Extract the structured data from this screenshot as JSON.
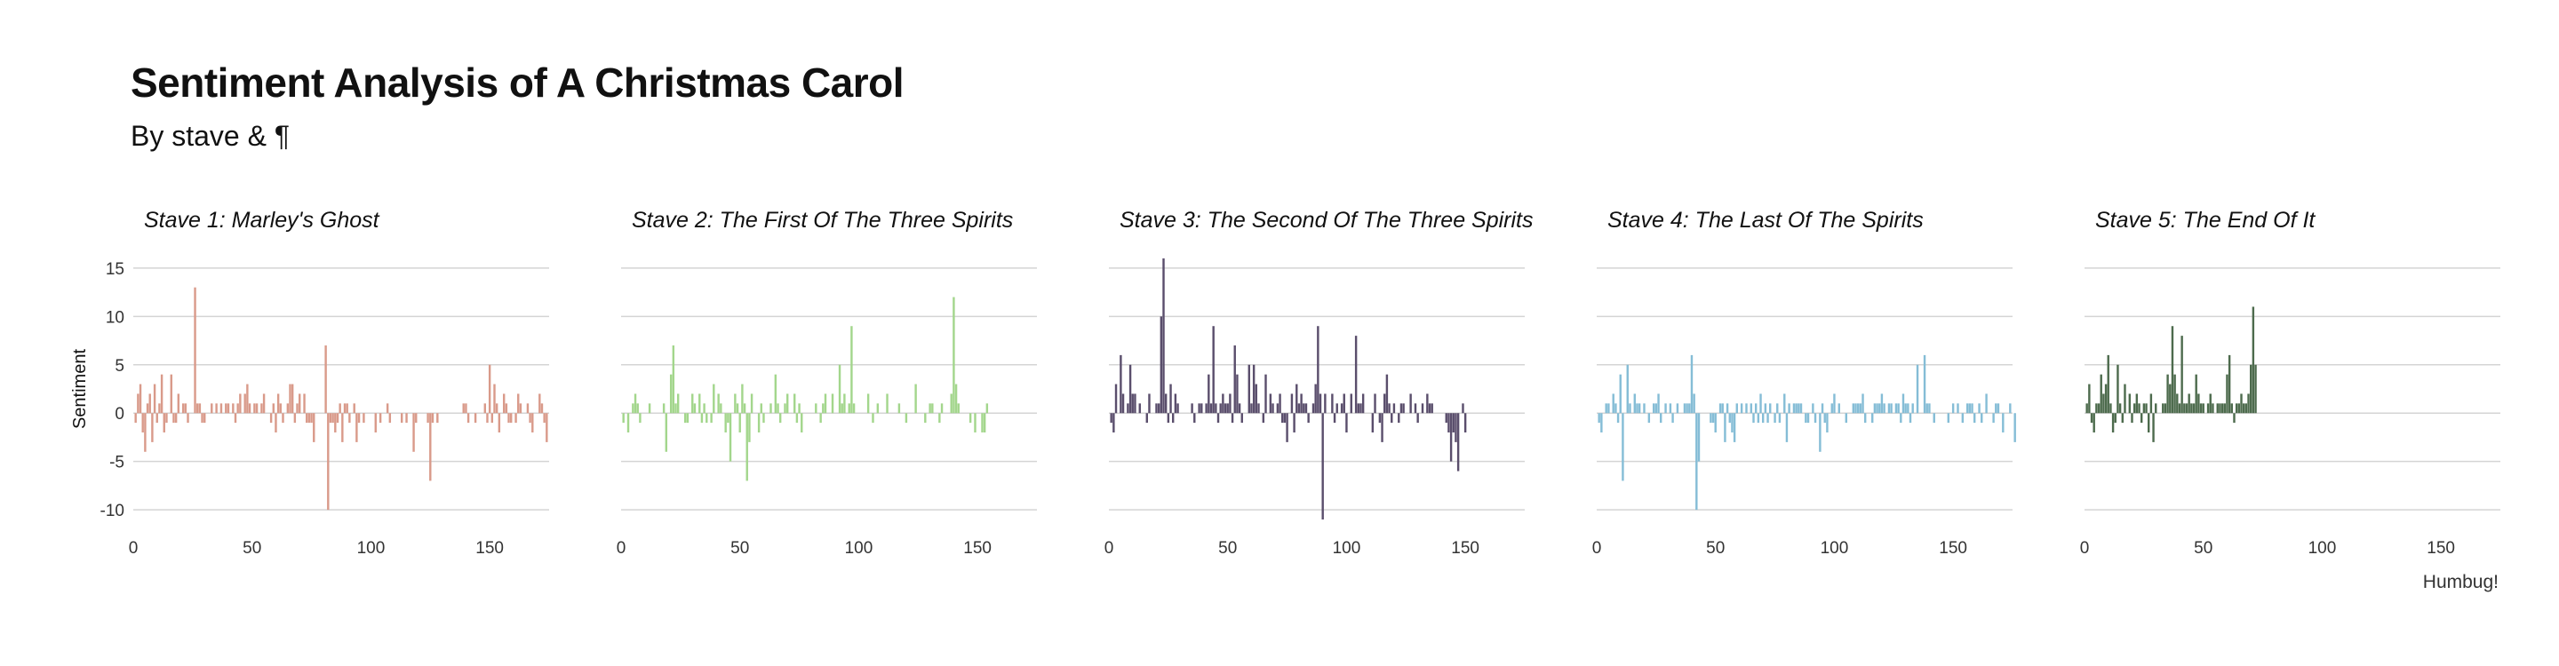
{
  "header": {
    "title": "Sentiment Analysis of A Christmas Carol",
    "subtitle": "By stave & ¶"
  },
  "caption": "Humbug!",
  "chart_data": {
    "type": "bar",
    "title": "Sentiment Analysis of A Christmas Carol",
    "subtitle": "By stave & ¶",
    "xlabel": "",
    "ylabel": "Sentiment",
    "xlim": [
      0,
      175
    ],
    "ylim": [
      -11,
      16
    ],
    "x_ticks": [
      0,
      50,
      100,
      150
    ],
    "y_ticks": [
      -10,
      -5,
      0,
      5,
      10,
      15
    ],
    "grid": "horizontal",
    "facets": [
      {
        "label": "Stave 1:  Marley's Ghost",
        "color": "#d99a8a",
        "values": [
          -1,
          2,
          3,
          -2,
          -4,
          1,
          2,
          -3,
          3,
          -1,
          1,
          4,
          -2,
          -1,
          0,
          4,
          -1,
          -1,
          2,
          0,
          1,
          1,
          -1,
          0,
          0,
          13,
          1,
          1,
          -1,
          -1,
          0,
          0,
          1,
          0,
          1,
          0,
          1,
          0,
          1,
          1,
          0,
          1,
          -1,
          1,
          2,
          0,
          2,
          3,
          1,
          0,
          1,
          1,
          0,
          1,
          2,
          0,
          0,
          -1,
          1,
          -2,
          2,
          1,
          -1,
          0,
          1,
          3,
          3,
          -1,
          1,
          2,
          0,
          2,
          -1,
          -1,
          -1,
          -3,
          0,
          0,
          0,
          0,
          7,
          -10,
          -1,
          -1,
          -2,
          -1,
          1,
          -3,
          1,
          1,
          -1,
          0,
          1,
          -3,
          -1,
          0,
          -1,
          0,
          0,
          0,
          0,
          -2,
          0,
          -1,
          0,
          0,
          1,
          -1,
          0,
          0,
          0,
          0,
          -1,
          0,
          -1,
          0,
          0,
          -4,
          -1,
          0,
          0,
          0,
          0,
          -1,
          -7,
          -1,
          0,
          -1,
          0,
          0,
          0,
          0,
          0,
          0,
          0,
          0,
          0,
          0,
          1,
          1,
          -1,
          0,
          0,
          -1,
          0,
          0,
          0,
          1,
          -1,
          5,
          -1,
          3,
          1,
          -2,
          0,
          2,
          1,
          -1,
          -1,
          0,
          -1,
          2,
          1,
          0,
          0,
          1,
          -1,
          -2,
          0,
          0,
          2,
          1,
          -1,
          -3
        ],
        "x_ticks": [
          0,
          50,
          100,
          150
        ]
      },
      {
        "label": "Stave 2:  The First Of The Three Spirits",
        "color": "#a3d68c",
        "values": [
          -1,
          0,
          -2,
          0,
          1,
          2,
          1,
          -1,
          0,
          0,
          0,
          1,
          0,
          0,
          0,
          0,
          0,
          1,
          -4,
          0,
          4,
          7,
          1,
          2,
          0,
          0,
          -1,
          -1,
          0,
          2,
          1,
          0,
          2,
          -1,
          1,
          -1,
          0,
          -1,
          3,
          0,
          2,
          1,
          0,
          -2,
          -1,
          -5,
          0,
          2,
          1,
          -2,
          3,
          1,
          -7,
          -3,
          2,
          0,
          0,
          -2,
          1,
          -1,
          0,
          0,
          1,
          0,
          4,
          1,
          -1,
          0,
          1,
          2,
          0,
          0,
          2,
          -1,
          1,
          -2,
          0,
          0,
          0,
          0,
          0,
          1,
          0,
          -1,
          1,
          2,
          0,
          0,
          2,
          0,
          0,
          5,
          1,
          2,
          0,
          1,
          9,
          1,
          0,
          0,
          0,
          0,
          0,
          2,
          0,
          -1,
          0,
          1,
          0,
          0,
          0,
          2,
          0,
          0,
          0,
          0,
          1,
          0,
          0,
          -1,
          0,
          0,
          0,
          3,
          0,
          0,
          0,
          -1,
          0,
          1,
          1,
          0,
          0,
          -1,
          1,
          0,
          0,
          0,
          2,
          12,
          3,
          1,
          0,
          0,
          0,
          0,
          -1,
          0,
          -2,
          0,
          0,
          -2,
          -2,
          1
        ],
        "x_ticks": [
          0,
          50,
          100,
          150
        ]
      },
      {
        "label": "Stave 3:  The Second Of The Three Spirits",
        "color": "#5a4e6c",
        "values": [
          -1,
          -2,
          3,
          0,
          6,
          2,
          0,
          1,
          5,
          2,
          2,
          0,
          1,
          0,
          0,
          -1,
          2,
          0,
          0,
          1,
          1,
          10,
          16,
          2,
          -1,
          3,
          -1,
          2,
          1,
          0,
          0,
          0,
          0,
          0,
          1,
          -1,
          0,
          1,
          1,
          0,
          1,
          4,
          1,
          9,
          1,
          -1,
          1,
          2,
          1,
          1,
          2,
          -1,
          7,
          4,
          1,
          -1,
          0,
          0,
          5,
          1,
          5,
          3,
          1,
          0,
          -1,
          4,
          0,
          2,
          1,
          0,
          1,
          2,
          -1,
          -1,
          -3,
          0,
          2,
          -2,
          3,
          1,
          2,
          1,
          1,
          -1,
          0,
          1,
          3,
          9,
          2,
          -11,
          2,
          0,
          0,
          2,
          -1,
          1,
          0,
          1,
          2,
          -2,
          0,
          2,
          0,
          8,
          1,
          1,
          2,
          0,
          0,
          0,
          -2,
          2,
          0,
          -1,
          -3,
          2,
          4,
          1,
          -1,
          1,
          0,
          -1,
          1,
          1,
          0,
          0,
          2,
          0,
          1,
          -1,
          0,
          1,
          0,
          2,
          1,
          1,
          0,
          0,
          0,
          0,
          0,
          -1,
          -2,
          -5,
          -2,
          -3,
          -6,
          0,
          1,
          -2
        ],
        "x_ticks": [
          0,
          50,
          100,
          150
        ]
      },
      {
        "label": "Stave 4:  The Last Of The Spirits",
        "color": "#85bdd6",
        "values": [
          -1,
          -2,
          0,
          1,
          1,
          0,
          2,
          1,
          -1,
          4,
          -7,
          0,
          5,
          1,
          0,
          2,
          1,
          1,
          0,
          1,
          0,
          -1,
          0,
          1,
          1,
          2,
          -1,
          0,
          1,
          0,
          1,
          -1,
          0,
          1,
          0,
          0,
          1,
          1,
          1,
          6,
          2,
          -10,
          -5,
          0,
          0,
          0,
          0,
          -1,
          -1,
          -2,
          0,
          1,
          1,
          -3,
          1,
          -1,
          -2,
          -3,
          1,
          0,
          1,
          0,
          1,
          0,
          1,
          -1,
          1,
          -1,
          2,
          -1,
          1,
          -1,
          1,
          0,
          -1,
          1,
          -1,
          0,
          2,
          -3,
          1,
          0,
          1,
          1,
          1,
          1,
          0,
          -1,
          -1,
          0,
          1,
          -1,
          0,
          -4,
          1,
          -1,
          -2,
          0,
          1,
          2,
          0,
          1,
          0,
          0,
          -1,
          0,
          0,
          1,
          1,
          1,
          1,
          2,
          -1,
          0,
          0,
          -1,
          1,
          1,
          1,
          2,
          1,
          0,
          1,
          1,
          0,
          1,
          1,
          -1,
          2,
          1,
          1,
          -1,
          1,
          0,
          5,
          0,
          0,
          6,
          1,
          1,
          0,
          -1,
          0,
          0,
          0,
          0,
          0,
          -1,
          0,
          1,
          0,
          1,
          0,
          -1,
          0,
          1,
          1,
          1,
          -1,
          0,
          1,
          -1,
          0,
          2,
          0,
          0,
          -1,
          1,
          1,
          0,
          -2,
          0,
          0,
          1,
          0,
          -3
        ],
        "x_ticks": [
          0,
          50,
          100,
          150
        ]
      },
      {
        "label": "Stave 5:  The End Of It",
        "color": "#4d6b4d",
        "values": [
          1,
          3,
          -1,
          -2,
          1,
          1,
          4,
          2,
          3,
          6,
          1,
          -2,
          -1,
          5,
          1,
          -1,
          3,
          0,
          2,
          -1,
          1,
          2,
          1,
          -1,
          1,
          1,
          -2,
          2,
          -3,
          1,
          0,
          0,
          1,
          1,
          4,
          3,
          9,
          4,
          2,
          1,
          8,
          1,
          1,
          2,
          1,
          1,
          4,
          2,
          1,
          1,
          0,
          1,
          2,
          1,
          0,
          1,
          1,
          1,
          1,
          4,
          6,
          1,
          -1,
          1,
          1,
          2,
          1,
          1,
          2,
          5,
          11,
          5
        ],
        "x_ticks": [
          0,
          50,
          100,
          150
        ]
      }
    ]
  }
}
